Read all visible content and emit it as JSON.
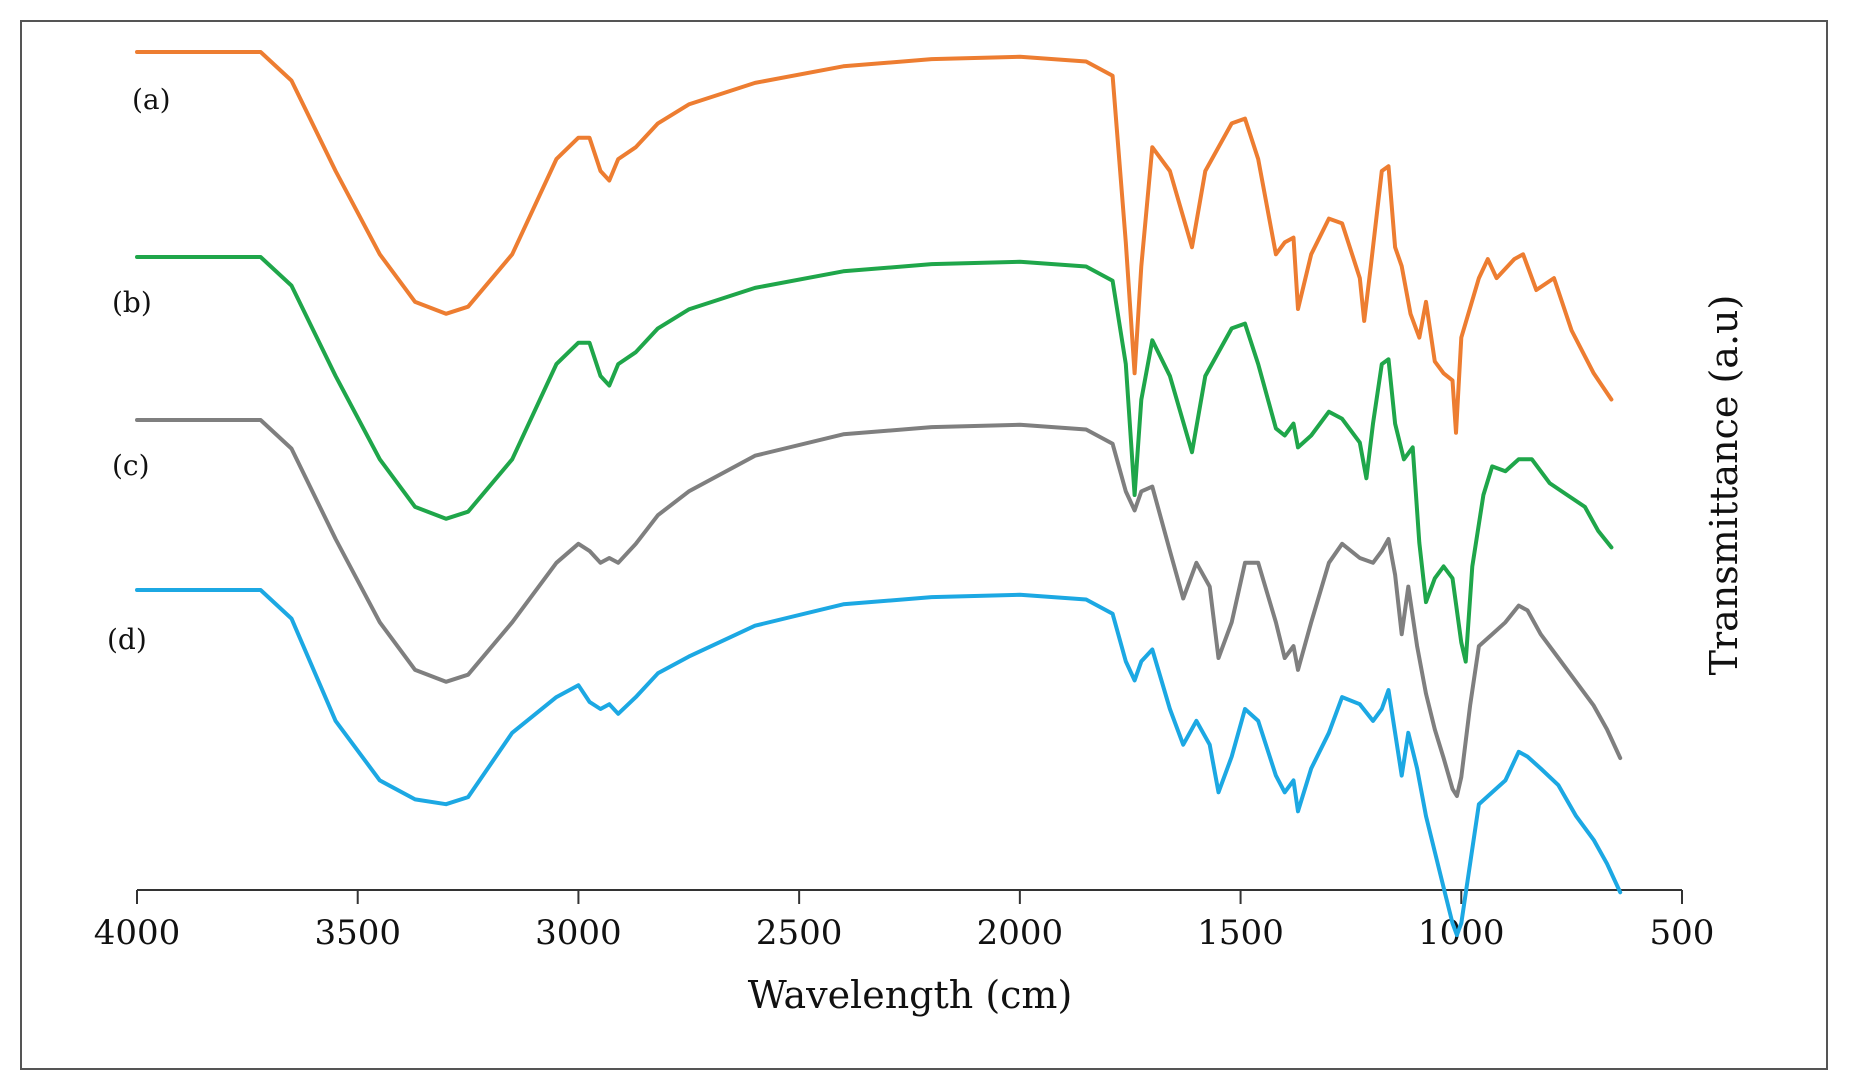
{
  "chart_data": {
    "type": "line",
    "title": "",
    "xlabel": "Wavelength (cm)",
    "ylabel": "Transmittance (a.u)",
    "xlim": [
      4000,
      500
    ],
    "x_ticks": [
      4000,
      3500,
      3000,
      2500,
      2000,
      1500,
      1000,
      500
    ],
    "grid": false,
    "stacked_offset": true,
    "series": [
      {
        "name": "(a)",
        "color": "#ED7D31",
        "points": [
          [
            4000,
            0.0
          ],
          [
            3720,
            0.0
          ],
          [
            3650,
            -0.12
          ],
          [
            3550,
            -0.5
          ],
          [
            3450,
            -0.85
          ],
          [
            3370,
            -1.05
          ],
          [
            3300,
            -1.1
          ],
          [
            3250,
            -1.07
          ],
          [
            3150,
            -0.85
          ],
          [
            3050,
            -0.45
          ],
          [
            3000,
            -0.36
          ],
          [
            2975,
            -0.36
          ],
          [
            2950,
            -0.5
          ],
          [
            2930,
            -0.54
          ],
          [
            2910,
            -0.45
          ],
          [
            2870,
            -0.4
          ],
          [
            2820,
            -0.3
          ],
          [
            2750,
            -0.22
          ],
          [
            2600,
            -0.13
          ],
          [
            2400,
            -0.06
          ],
          [
            2200,
            -0.03
          ],
          [
            2000,
            -0.02
          ],
          [
            1850,
            -0.04
          ],
          [
            1790,
            -0.1
          ],
          [
            1760,
            -0.8
          ],
          [
            1740,
            -1.35
          ],
          [
            1725,
            -0.9
          ],
          [
            1700,
            -0.4
          ],
          [
            1660,
            -0.5
          ],
          [
            1610,
            -0.82
          ],
          [
            1580,
            -0.5
          ],
          [
            1520,
            -0.3
          ],
          [
            1490,
            -0.28
          ],
          [
            1460,
            -0.45
          ],
          [
            1420,
            -0.85
          ],
          [
            1400,
            -0.8
          ],
          [
            1380,
            -0.78
          ],
          [
            1370,
            -1.08
          ],
          [
            1340,
            -0.85
          ],
          [
            1300,
            -0.7
          ],
          [
            1270,
            -0.72
          ],
          [
            1230,
            -0.95
          ],
          [
            1220,
            -1.13
          ],
          [
            1205,
            -0.9
          ],
          [
            1180,
            -0.5
          ],
          [
            1165,
            -0.48
          ],
          [
            1150,
            -0.82
          ],
          [
            1135,
            -0.9
          ],
          [
            1115,
            -1.1
          ],
          [
            1095,
            -1.2
          ],
          [
            1080,
            -1.05
          ],
          [
            1060,
            -1.3
          ],
          [
            1040,
            -1.35
          ],
          [
            1020,
            -1.38
          ],
          [
            1012,
            -1.6
          ],
          [
            1000,
            -1.2
          ],
          [
            960,
            -0.95
          ],
          [
            940,
            -0.87
          ],
          [
            920,
            -0.95
          ],
          [
            880,
            -0.87
          ],
          [
            860,
            -0.85
          ],
          [
            830,
            -1.0
          ],
          [
            790,
            -0.95
          ],
          [
            750,
            -1.17
          ],
          [
            700,
            -1.35
          ],
          [
            660,
            -1.46
          ]
        ]
      },
      {
        "name": "(b)",
        "color": "#1FA64A",
        "points": [
          [
            4000,
            0.0
          ],
          [
            3720,
            0.0
          ],
          [
            3650,
            -0.12
          ],
          [
            3550,
            -0.5
          ],
          [
            3450,
            -0.85
          ],
          [
            3370,
            -1.05
          ],
          [
            3300,
            -1.1
          ],
          [
            3250,
            -1.07
          ],
          [
            3150,
            -0.85
          ],
          [
            3050,
            -0.45
          ],
          [
            3000,
            -0.36
          ],
          [
            2975,
            -0.36
          ],
          [
            2950,
            -0.5
          ],
          [
            2930,
            -0.54
          ],
          [
            2910,
            -0.45
          ],
          [
            2870,
            -0.4
          ],
          [
            2820,
            -0.3
          ],
          [
            2750,
            -0.22
          ],
          [
            2600,
            -0.13
          ],
          [
            2400,
            -0.06
          ],
          [
            2200,
            -0.03
          ],
          [
            2000,
            -0.02
          ],
          [
            1850,
            -0.04
          ],
          [
            1790,
            -0.1
          ],
          [
            1760,
            -0.45
          ],
          [
            1740,
            -1.0
          ],
          [
            1725,
            -0.6
          ],
          [
            1700,
            -0.35
          ],
          [
            1660,
            -0.5
          ],
          [
            1610,
            -0.82
          ],
          [
            1580,
            -0.5
          ],
          [
            1520,
            -0.3
          ],
          [
            1490,
            -0.28
          ],
          [
            1460,
            -0.45
          ],
          [
            1420,
            -0.72
          ],
          [
            1400,
            -0.75
          ],
          [
            1380,
            -0.7
          ],
          [
            1370,
            -0.8
          ],
          [
            1340,
            -0.75
          ],
          [
            1300,
            -0.65
          ],
          [
            1270,
            -0.68
          ],
          [
            1230,
            -0.78
          ],
          [
            1215,
            -0.93
          ],
          [
            1200,
            -0.7
          ],
          [
            1180,
            -0.45
          ],
          [
            1165,
            -0.43
          ],
          [
            1150,
            -0.7
          ],
          [
            1130,
            -0.85
          ],
          [
            1110,
            -0.8
          ],
          [
            1095,
            -1.2
          ],
          [
            1080,
            -1.45
          ],
          [
            1060,
            -1.35
          ],
          [
            1040,
            -1.3
          ],
          [
            1020,
            -1.35
          ],
          [
            1000,
            -1.62
          ],
          [
            990,
            -1.7
          ],
          [
            975,
            -1.3
          ],
          [
            950,
            -1.0
          ],
          [
            930,
            -0.88
          ],
          [
            900,
            -0.9
          ],
          [
            870,
            -0.85
          ],
          [
            840,
            -0.85
          ],
          [
            800,
            -0.95
          ],
          [
            760,
            -1.0
          ],
          [
            720,
            -1.05
          ],
          [
            690,
            -1.15
          ],
          [
            660,
            -1.22
          ]
        ]
      },
      {
        "name": "(c)",
        "color": "#7F7F7F",
        "points": [
          [
            4000,
            0.0
          ],
          [
            3720,
            0.0
          ],
          [
            3650,
            -0.12
          ],
          [
            3550,
            -0.5
          ],
          [
            3450,
            -0.85
          ],
          [
            3370,
            -1.05
          ],
          [
            3300,
            -1.1
          ],
          [
            3250,
            -1.07
          ],
          [
            3150,
            -0.85
          ],
          [
            3050,
            -0.6
          ],
          [
            3000,
            -0.52
          ],
          [
            2975,
            -0.55
          ],
          [
            2950,
            -0.6
          ],
          [
            2930,
            -0.58
          ],
          [
            2910,
            -0.6
          ],
          [
            2870,
            -0.52
          ],
          [
            2820,
            -0.4
          ],
          [
            2750,
            -0.3
          ],
          [
            2600,
            -0.15
          ],
          [
            2400,
            -0.06
          ],
          [
            2200,
            -0.03
          ],
          [
            2000,
            -0.02
          ],
          [
            1850,
            -0.04
          ],
          [
            1790,
            -0.1
          ],
          [
            1760,
            -0.3
          ],
          [
            1740,
            -0.38
          ],
          [
            1725,
            -0.3
          ],
          [
            1700,
            -0.28
          ],
          [
            1660,
            -0.55
          ],
          [
            1630,
            -0.75
          ],
          [
            1600,
            -0.6
          ],
          [
            1570,
            -0.7
          ],
          [
            1550,
            -1.0
          ],
          [
            1520,
            -0.85
          ],
          [
            1490,
            -0.6
          ],
          [
            1460,
            -0.6
          ],
          [
            1420,
            -0.85
          ],
          [
            1400,
            -1.0
          ],
          [
            1380,
            -0.95
          ],
          [
            1370,
            -1.05
          ],
          [
            1340,
            -0.85
          ],
          [
            1300,
            -0.6
          ],
          [
            1270,
            -0.52
          ],
          [
            1230,
            -0.58
          ],
          [
            1200,
            -0.6
          ],
          [
            1180,
            -0.55
          ],
          [
            1165,
            -0.5
          ],
          [
            1150,
            -0.65
          ],
          [
            1135,
            -0.9
          ],
          [
            1120,
            -0.7
          ],
          [
            1100,
            -0.95
          ],
          [
            1080,
            -1.15
          ],
          [
            1060,
            -1.3
          ],
          [
            1040,
            -1.42
          ],
          [
            1020,
            -1.55
          ],
          [
            1010,
            -1.58
          ],
          [
            1000,
            -1.5
          ],
          [
            980,
            -1.2
          ],
          [
            960,
            -0.95
          ],
          [
            930,
            -0.9
          ],
          [
            900,
            -0.85
          ],
          [
            870,
            -0.78
          ],
          [
            850,
            -0.8
          ],
          [
            820,
            -0.9
          ],
          [
            780,
            -1.0
          ],
          [
            740,
            -1.1
          ],
          [
            700,
            -1.2
          ],
          [
            670,
            -1.3
          ],
          [
            640,
            -1.42
          ]
        ]
      },
      {
        "name": "(d)",
        "color": "#1CA8E3",
        "points": [
          [
            4000,
            0.0
          ],
          [
            3720,
            0.0
          ],
          [
            3650,
            -0.12
          ],
          [
            3550,
            -0.55
          ],
          [
            3450,
            -0.8
          ],
          [
            3370,
            -0.88
          ],
          [
            3300,
            -0.9
          ],
          [
            3250,
            -0.87
          ],
          [
            3150,
            -0.6
          ],
          [
            3050,
            -0.45
          ],
          [
            3000,
            -0.4
          ],
          [
            2975,
            -0.47
          ],
          [
            2950,
            -0.5
          ],
          [
            2930,
            -0.48
          ],
          [
            2910,
            -0.52
          ],
          [
            2870,
            -0.45
          ],
          [
            2820,
            -0.35
          ],
          [
            2750,
            -0.28
          ],
          [
            2600,
            -0.15
          ],
          [
            2400,
            -0.06
          ],
          [
            2200,
            -0.03
          ],
          [
            2000,
            -0.02
          ],
          [
            1850,
            -0.04
          ],
          [
            1790,
            -0.1
          ],
          [
            1760,
            -0.3
          ],
          [
            1740,
            -0.38
          ],
          [
            1725,
            -0.3
          ],
          [
            1700,
            -0.25
          ],
          [
            1660,
            -0.5
          ],
          [
            1630,
            -0.65
          ],
          [
            1600,
            -0.55
          ],
          [
            1570,
            -0.65
          ],
          [
            1550,
            -0.85
          ],
          [
            1520,
            -0.7
          ],
          [
            1490,
            -0.5
          ],
          [
            1460,
            -0.55
          ],
          [
            1420,
            -0.78
          ],
          [
            1400,
            -0.85
          ],
          [
            1380,
            -0.8
          ],
          [
            1370,
            -0.93
          ],
          [
            1340,
            -0.75
          ],
          [
            1300,
            -0.6
          ],
          [
            1270,
            -0.45
          ],
          [
            1230,
            -0.48
          ],
          [
            1200,
            -0.55
          ],
          [
            1180,
            -0.5
          ],
          [
            1165,
            -0.42
          ],
          [
            1150,
            -0.6
          ],
          [
            1135,
            -0.78
          ],
          [
            1120,
            -0.6
          ],
          [
            1100,
            -0.75
          ],
          [
            1080,
            -0.95
          ],
          [
            1060,
            -1.1
          ],
          [
            1040,
            -1.25
          ],
          [
            1020,
            -1.4
          ],
          [
            1010,
            -1.45
          ],
          [
            1000,
            -1.4
          ],
          [
            980,
            -1.15
          ],
          [
            960,
            -0.9
          ],
          [
            930,
            -0.85
          ],
          [
            900,
            -0.8
          ],
          [
            870,
            -0.68
          ],
          [
            850,
            -0.7
          ],
          [
            820,
            -0.75
          ],
          [
            780,
            -0.82
          ],
          [
            740,
            -0.95
          ],
          [
            700,
            -1.05
          ],
          [
            670,
            -1.15
          ],
          [
            640,
            -1.27
          ]
        ]
      }
    ]
  }
}
